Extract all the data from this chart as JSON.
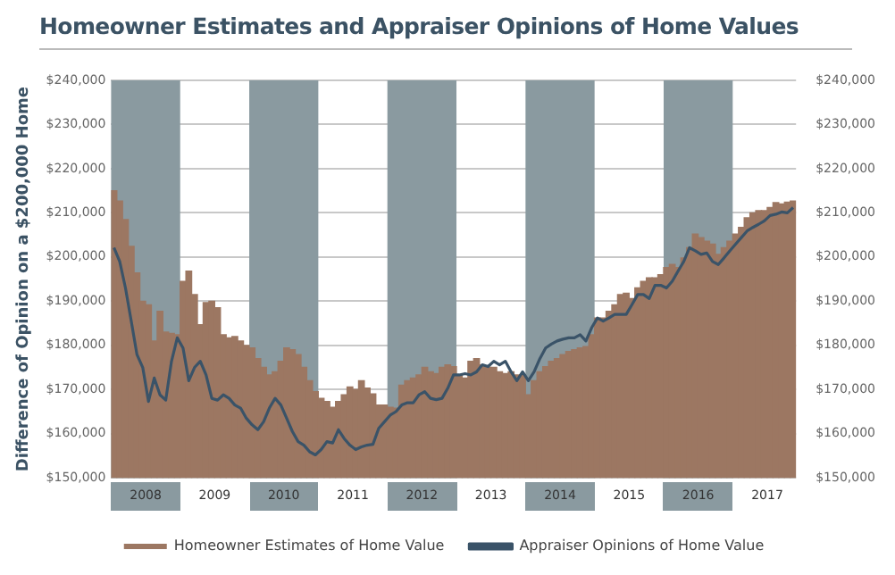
{
  "chart_data": {
    "type": "bar",
    "title": "Homeowner Estimates and Appraiser Opinions of Home Values",
    "ylabel": "Difference of Opinion on a $200,000 Home",
    "x": [
      "2008-01-16",
      "2008-02-16",
      "2008-03-16",
      "2008-04-16",
      "2008-05-16",
      "2008-06-16",
      "2008-07-16",
      "2008-08-16",
      "2008-09-16",
      "2008-10-16",
      "2008-11-16",
      "2008-12-16",
      "2009-01-16",
      "2009-02-16",
      "2009-03-16",
      "2009-04-16",
      "2009-05-16",
      "2009-06-16",
      "2009-07-16",
      "2009-08-16",
      "2009-09-16",
      "2009-10-16",
      "2009-11-16",
      "2009-12-16",
      "2010-01-16",
      "2010-02-16",
      "2010-03-16",
      "2010-04-16",
      "2010-05-16",
      "2010-06-16",
      "2010-07-16",
      "2010-08-16",
      "2010-09-16",
      "2010-10-16",
      "2010-11-16",
      "2010-12-16",
      "2011-01-16",
      "2011-02-16",
      "2011-03-16",
      "2011-04-16",
      "2011-05-16",
      "2011-06-16",
      "2011-07-16",
      "2011-08-16",
      "2011-09-16",
      "2011-10-16",
      "2011-11-16",
      "2011-12-16",
      "2012-01-16",
      "2012-02-16",
      "2012-03-16",
      "2012-04-16",
      "2012-05-16",
      "2012-06-16",
      "2012-07-16",
      "2012-08-16",
      "2012-09-16",
      "2012-10-16",
      "2012-11-16",
      "2012-12-16",
      "2013-01-16",
      "2013-02-16",
      "2013-03-16",
      "2013-04-16",
      "2013-05-16",
      "2013-06-16",
      "2013-07-16",
      "2013-08-16",
      "2013-09-16",
      "2013-10-16",
      "2013-11-16",
      "2013-12-16",
      "2014-01-16",
      "2014-02-16",
      "2014-03-16",
      "2014-04-16",
      "2014-05-16",
      "2014-06-16",
      "2014-07-16",
      "2014-08-16",
      "2014-09-16",
      "2014-10-16",
      "2014-11-16",
      "2014-12-16",
      "2015-01-16",
      "2015-02-16",
      "2015-03-16",
      "2015-04-16",
      "2015-05-16",
      "2015-06-16",
      "2015-07-16",
      "2015-08-16",
      "2015-09-16",
      "2015-10-16",
      "2015-11-16",
      "2015-12-16",
      "2016-01-16",
      "2016-02-16",
      "2016-03-16",
      "2016-04-16",
      "2016-05-16",
      "2016-06-16",
      "2016-07-16",
      "2016-08-16",
      "2016-09-16",
      "2016-10-16",
      "2016-11-16",
      "2016-12-16",
      "2017-01-16",
      "2017-02-16",
      "2017-03-16",
      "2017-04-16",
      "2017-05-16",
      "2017-06-16",
      "2017-07-16",
      "2017-08-16",
      "2017-09-16",
      "2017-10-16",
      "2017-11-16"
    ],
    "series": [
      {
        "name": "Homeowner Estimates of Home Value",
        "color": "#9c7762",
        "values": [
          215000,
          212700,
          208500,
          202400,
          196400,
          190000,
          189200,
          181000,
          187700,
          183000,
          182700,
          182400,
          194500,
          196800,
          191500,
          184700,
          189700,
          190000,
          188500,
          182400,
          181700,
          182000,
          181000,
          180000,
          179400,
          177000,
          175000,
          173300,
          174000,
          176400,
          179400,
          179000,
          177900,
          175000,
          172000,
          169500,
          168000,
          167300,
          166000,
          167300,
          168800,
          170600,
          170000,
          172000,
          170300,
          169000,
          166500,
          166500,
          166000,
          165800,
          171000,
          172000,
          172600,
          173300,
          175000,
          174000,
          173600,
          175000,
          175600,
          175200,
          173300,
          172600,
          176400,
          177000,
          175600,
          175000,
          175000,
          174000,
          173600,
          174000,
          173300,
          173300,
          168800,
          172000,
          174000,
          175200,
          176400,
          177000,
          177900,
          178600,
          179000,
          179400,
          179700,
          182400,
          186200,
          186200,
          187700,
          189200,
          191500,
          191800,
          190600,
          193000,
          194500,
          195300,
          195300,
          196000,
          197600,
          198300,
          197600,
          199800,
          202100,
          205200,
          204400,
          203600,
          202900,
          200600,
          202100,
          203600,
          205200,
          206700,
          208900,
          210000,
          210500,
          210500,
          211200,
          212300,
          212000,
          212400,
          212700
        ]
      },
      {
        "name": "Appraiser Opinions of Home Value",
        "type": "line",
        "color": "#3a5368",
        "values": [
          202100,
          199000,
          193000,
          185500,
          177900,
          175000,
          167300,
          172600,
          168800,
          167600,
          176400,
          181700,
          179400,
          172000,
          175000,
          176400,
          173300,
          168000,
          167600,
          168800,
          168000,
          166500,
          165800,
          163500,
          162000,
          160900,
          162700,
          165800,
          168000,
          166500,
          163500,
          160500,
          158200,
          157400,
          155900,
          155200,
          156400,
          158200,
          157900,
          160900,
          158900,
          157400,
          156400,
          157000,
          157400,
          157600,
          161200,
          162700,
          164200,
          165000,
          166500,
          167000,
          167000,
          168800,
          169500,
          168000,
          167700,
          168000,
          170300,
          173300,
          173300,
          173600,
          173300,
          174000,
          175600,
          175200,
          176400,
          175600,
          176400,
          174000,
          172000,
          174000,
          172000,
          174000,
          177000,
          179400,
          180300,
          181000,
          181400,
          181700,
          181700,
          182400,
          181000,
          184000,
          186200,
          185500,
          186200,
          187000,
          187000,
          187000,
          189200,
          191500,
          191500,
          190600,
          193600,
          193600,
          193000,
          194500,
          196800,
          199000,
          202100,
          201400,
          200600,
          200900,
          199000,
          198300,
          199800,
          201400,
          202900,
          204400,
          205900,
          206700,
          207400,
          208200,
          209400,
          209700,
          210200,
          210000,
          211200
        ]
      }
    ],
    "xlim": [
      "2008-01-01",
      "2017-12-01"
    ],
    "xticks": [
      {
        "value": "2008-07-01",
        "label": "2008"
      },
      {
        "value": "2009-07-01",
        "label": "2009"
      },
      {
        "value": "2010-07-01",
        "label": "2010"
      },
      {
        "value": "2011-07-01",
        "label": "2011"
      },
      {
        "value": "2012-07-01",
        "label": "2012"
      },
      {
        "value": "2013-07-01",
        "label": "2013"
      },
      {
        "value": "2014-07-01",
        "label": "2014"
      },
      {
        "value": "2015-07-01",
        "label": "2015"
      },
      {
        "value": "2016-07-01",
        "label": "2016"
      },
      {
        "value": "2017-07-01",
        "label": "2017"
      }
    ],
    "ylim": [
      150000,
      240000
    ],
    "yticks": [
      {
        "value": 150000,
        "label": "$150,000"
      },
      {
        "value": 160000,
        "label": "$160,000"
      },
      {
        "value": 170000,
        "label": "$170,000"
      },
      {
        "value": 180000,
        "label": "$180,000"
      },
      {
        "value": 190000,
        "label": "$190,000"
      },
      {
        "value": 200000,
        "label": "$200,000"
      },
      {
        "value": 210000,
        "label": "$210,000"
      },
      {
        "value": 220000,
        "label": "$220,000"
      },
      {
        "value": 230000,
        "label": "$230,000"
      },
      {
        "value": 240000,
        "label": "$240,000"
      }
    ],
    "y2lim": [
      150000,
      240000
    ],
    "y2ticks": [
      {
        "value": 150000,
        "label": "$150,000"
      },
      {
        "value": 160000,
        "label": "$160,000"
      },
      {
        "value": 170000,
        "label": "$170,000"
      },
      {
        "value": 180000,
        "label": "$180,000"
      },
      {
        "value": 190000,
        "label": "$190,000"
      },
      {
        "value": 200000,
        "label": "$200,000"
      },
      {
        "value": 210000,
        "label": "$210,000"
      },
      {
        "value": 220000,
        "label": "$220,000"
      },
      {
        "value": 230000,
        "label": "$230,000"
      },
      {
        "value": 240000,
        "label": "$240,000"
      }
    ],
    "bands": [
      {
        "axis": "x",
        "from": "2008-01-01",
        "to": "2009-01-01",
        "color": "#8a9aa0"
      },
      {
        "axis": "x",
        "from": "2010-01-01",
        "to": "2011-01-01",
        "color": "#8a9aa0"
      },
      {
        "axis": "x",
        "from": "2012-01-01",
        "to": "2013-01-01",
        "color": "#8a9aa0"
      },
      {
        "axis": "x",
        "from": "2014-01-01",
        "to": "2015-01-01",
        "color": "#8a9aa0"
      },
      {
        "axis": "x",
        "from": "2016-01-01",
        "to": "2017-01-01",
        "color": "#8a9aa0"
      }
    ],
    "grid": "y",
    "legend": "bottom",
    "marker": "none",
    "line_style": "solid"
  }
}
